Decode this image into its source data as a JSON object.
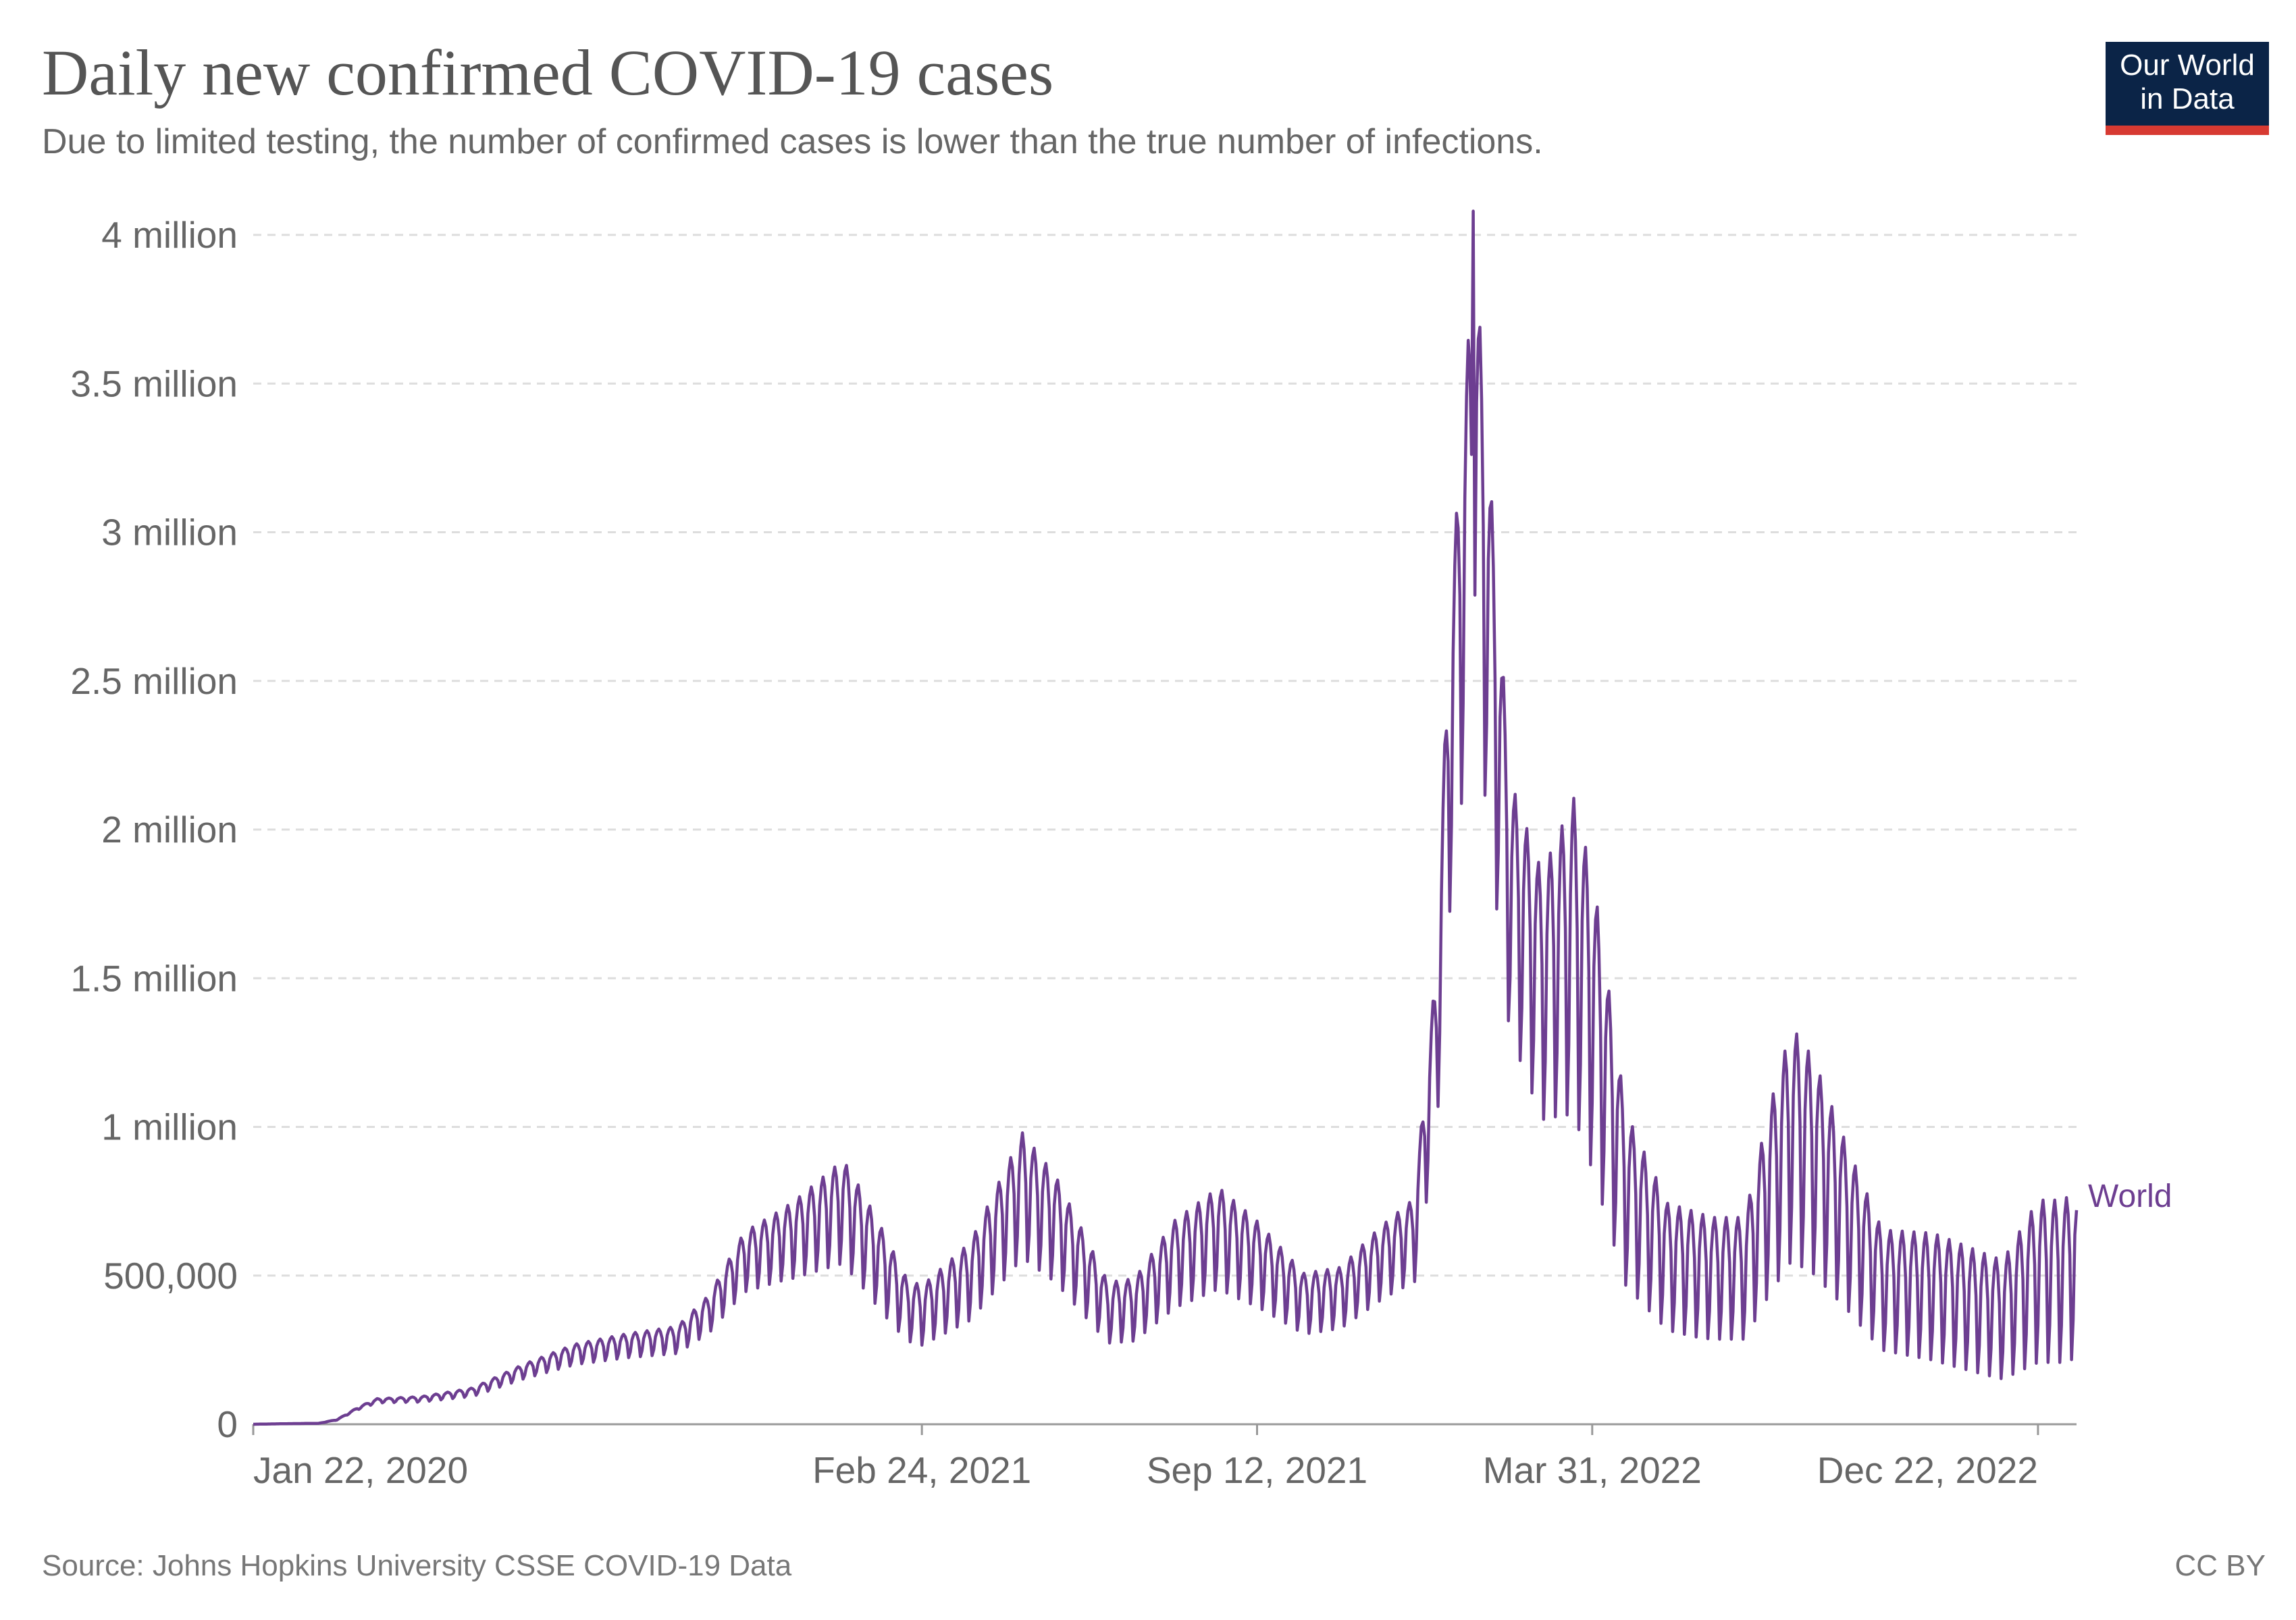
{
  "header": {
    "title": "Daily new confirmed COVID-19 cases",
    "subtitle": "Due to limited testing, the number of confirmed cases is lower than the true number of infections."
  },
  "logo": {
    "line1": "Our World",
    "line2": "in Data"
  },
  "footer": {
    "source": "Source: Johns Hopkins University CSSE COVID-19 Data",
    "license": "CC BY"
  },
  "colors": {
    "series": "#6d3e91",
    "grid": "#dddddd",
    "axis": "#999999",
    "logo_bg": "#0b2447",
    "logo_bar": "#d73a32"
  },
  "chart_data": {
    "type": "line",
    "title": "Daily new confirmed COVID-19 cases",
    "subtitle": "Due to limited testing, the number of confirmed cases is lower than the true number of infections.",
    "xlabel": "",
    "ylabel": "",
    "x_range": [
      "2020-01-22",
      "2023-01-14"
    ],
    "ylim": [
      0,
      4000000
    ],
    "grid": "horizontal dashed",
    "legend": "right end of line",
    "y_ticks": [
      {
        "value": 0,
        "label": "0"
      },
      {
        "value": 500000,
        "label": "500,000"
      },
      {
        "value": 1000000,
        "label": "1 million"
      },
      {
        "value": 1500000,
        "label": "1.5 million"
      },
      {
        "value": 2000000,
        "label": "2 million"
      },
      {
        "value": 2500000,
        "label": "2.5 million"
      },
      {
        "value": 3000000,
        "label": "3 million"
      },
      {
        "value": 3500000,
        "label": "3.5 million"
      },
      {
        "value": 4000000,
        "label": "4 million"
      }
    ],
    "x_ticks": [
      {
        "date": "2020-01-22",
        "label": "Jan 22, 2020"
      },
      {
        "date": "2021-02-24",
        "label": "Feb 24, 2021"
      },
      {
        "date": "2021-09-12",
        "label": "Sep 12, 2021"
      },
      {
        "date": "2022-03-31",
        "label": "Mar 31, 2022"
      },
      {
        "date": "2022-12-22",
        "label": "Dec 22, 2022"
      }
    ],
    "series": [
      {
        "name": "World",
        "trend": [
          [
            "2020-01-22",
            0
          ],
          [
            "2020-02-12",
            2000
          ],
          [
            "2020-03-01",
            3000
          ],
          [
            "2020-03-12",
            15000
          ],
          [
            "2020-03-25",
            55000
          ],
          [
            "2020-04-05",
            80000
          ],
          [
            "2020-05-01",
            85000
          ],
          [
            "2020-06-01",
            110000
          ],
          [
            "2020-07-01",
            180000
          ],
          [
            "2020-08-01",
            240000
          ],
          [
            "2020-09-01",
            270000
          ],
          [
            "2020-10-01",
            290000
          ],
          [
            "2020-10-20",
            380000
          ],
          [
            "2020-11-10",
            560000
          ],
          [
            "2020-12-10",
            640000
          ],
          [
            "2021-01-08",
            740000
          ],
          [
            "2021-01-20",
            640000
          ],
          [
            "2021-02-15",
            400000
          ],
          [
            "2021-02-24",
            380000
          ],
          [
            "2021-03-25",
            500000
          ],
          [
            "2021-04-25",
            800000
          ],
          [
            "2021-05-15",
            680000
          ],
          [
            "2021-06-15",
            390000
          ],
          [
            "2021-07-01",
            400000
          ],
          [
            "2021-07-25",
            560000
          ],
          [
            "2021-08-20",
            650000
          ],
          [
            "2021-09-12",
            560000
          ],
          [
            "2021-10-10",
            420000
          ],
          [
            "2021-11-01",
            440000
          ],
          [
            "2021-11-25",
            560000
          ],
          [
            "2021-12-15",
            640000
          ],
          [
            "2021-12-28",
            1300000
          ],
          [
            "2022-01-05",
            2300000
          ],
          [
            "2022-01-15",
            3000000
          ],
          [
            "2022-01-20",
            3300000
          ],
          [
            "2022-01-27",
            2800000
          ],
          [
            "2022-02-10",
            1800000
          ],
          [
            "2022-03-01",
            1500000
          ],
          [
            "2022-03-20",
            1650000
          ],
          [
            "2022-04-01",
            1400000
          ],
          [
            "2022-04-20",
            800000
          ],
          [
            "2022-05-15",
            560000
          ],
          [
            "2022-06-10",
            520000
          ],
          [
            "2022-06-30",
            520000
          ],
          [
            "2022-07-15",
            800000
          ],
          [
            "2022-07-28",
            1000000
          ],
          [
            "2022-08-10",
            920000
          ],
          [
            "2022-08-30",
            700000
          ],
          [
            "2022-09-20",
            480000
          ],
          [
            "2022-10-20",
            460000
          ],
          [
            "2022-11-20",
            400000
          ],
          [
            "2022-12-01",
            380000
          ],
          [
            "2022-12-22",
            520000
          ],
          [
            "2023-01-07",
            520000
          ],
          [
            "2023-01-14",
            560000
          ]
        ],
        "weekly_amplitude": [
          [
            "2020-01-22",
            0.0
          ],
          [
            "2020-04-01",
            0.1
          ],
          [
            "2020-06-01",
            0.15
          ],
          [
            "2020-10-01",
            0.18
          ],
          [
            "2020-12-01",
            0.22
          ],
          [
            "2021-02-01",
            0.3
          ],
          [
            "2021-09-01",
            0.3
          ],
          [
            "2021-12-01",
            0.25
          ],
          [
            "2022-01-10",
            0.25
          ],
          [
            "2022-02-15",
            0.28
          ],
          [
            "2022-04-01",
            0.4
          ],
          [
            "2022-06-01",
            0.45
          ],
          [
            "2022-09-01",
            0.45
          ],
          [
            "2022-12-01",
            0.6
          ],
          [
            "2023-01-14",
            0.6
          ]
        ],
        "peak_approx": {
          "date": "2022-01-19",
          "value": 4080000
        },
        "last_value_approx": 720000
      }
    ]
  }
}
